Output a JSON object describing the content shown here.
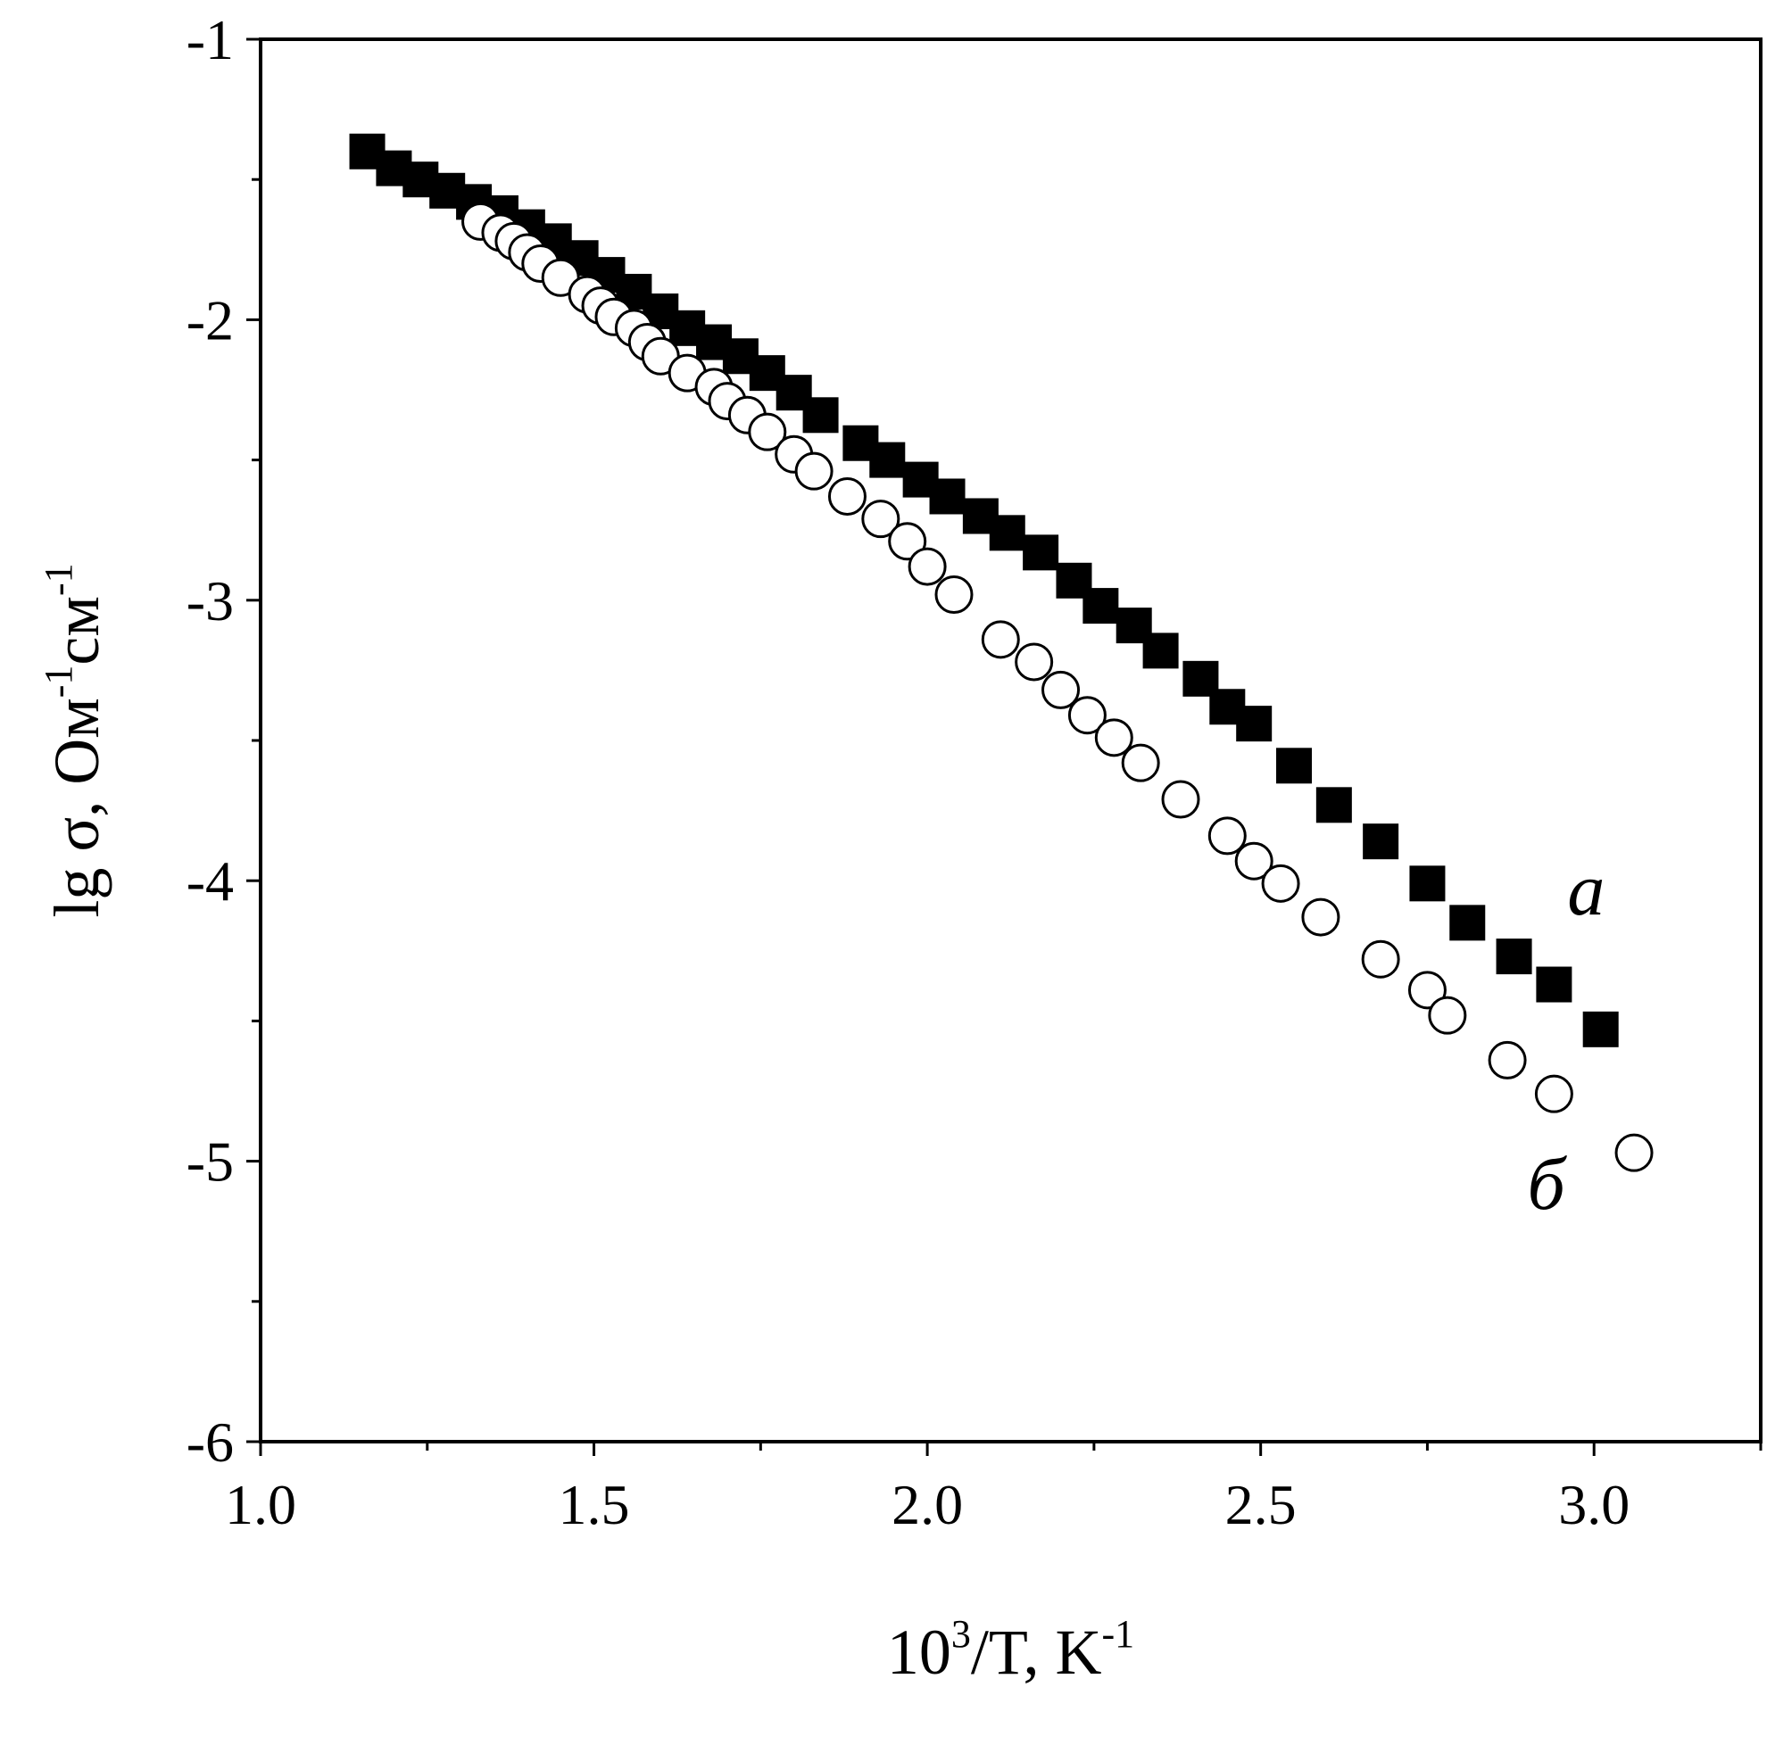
{
  "chart_data": {
    "type": "scatter",
    "xlim": [
      1.0,
      3.25
    ],
    "ylim": [
      -6,
      -1
    ],
    "x_ticks": [
      "1.0",
      "1.5",
      "2.0",
      "2.5",
      "3.0"
    ],
    "y_ticks": [
      "-1",
      "-2",
      "-3",
      "-4",
      "-5",
      "-6"
    ],
    "xlabel": {
      "base": "10",
      "sup1": "3",
      "mid": "/T, K",
      "sup2": "-1"
    },
    "ylabel": {
      "base": "lg σ, Ом",
      "sup1": "-1",
      "mid": "см",
      "sup2": "-1"
    },
    "grid": false,
    "series": [
      {
        "name": "a",
        "marker": "filled-square",
        "x": [
          1.16,
          1.2,
          1.24,
          1.28,
          1.32,
          1.36,
          1.4,
          1.44,
          1.48,
          1.52,
          1.56,
          1.6,
          1.64,
          1.68,
          1.72,
          1.76,
          1.8,
          1.84,
          1.9,
          1.94,
          1.99,
          2.03,
          2.08,
          2.12,
          2.17,
          2.22,
          2.26,
          2.31,
          2.35,
          2.41,
          2.45,
          2.49,
          2.55,
          2.61,
          2.68,
          2.75,
          2.81,
          2.88,
          2.94,
          3.01
        ],
        "y": [
          -1.4,
          -1.46,
          -1.5,
          -1.54,
          -1.58,
          -1.62,
          -1.67,
          -1.72,
          -1.78,
          -1.84,
          -1.9,
          -1.97,
          -2.03,
          -2.08,
          -2.13,
          -2.19,
          -2.26,
          -2.34,
          -2.44,
          -2.5,
          -2.57,
          -2.63,
          -2.7,
          -2.76,
          -2.83,
          -2.93,
          -3.02,
          -3.09,
          -3.18,
          -3.28,
          -3.38,
          -3.44,
          -3.59,
          -3.73,
          -3.86,
          -4.01,
          -4.15,
          -4.27,
          -4.37,
          -4.53
        ]
      },
      {
        "name": "б",
        "marker": "open-circle",
        "x": [
          1.33,
          1.36,
          1.38,
          1.4,
          1.42,
          1.45,
          1.49,
          1.51,
          1.53,
          1.56,
          1.58,
          1.6,
          1.64,
          1.68,
          1.7,
          1.73,
          1.76,
          1.8,
          1.83,
          1.88,
          1.93,
          1.97,
          2.0,
          2.04,
          2.11,
          2.16,
          2.2,
          2.24,
          2.28,
          2.32,
          2.38,
          2.45,
          2.49,
          2.53,
          2.59,
          2.68,
          2.75,
          2.78,
          2.87,
          2.94,
          3.06
        ],
        "y": [
          -1.65,
          -1.69,
          -1.72,
          -1.76,
          -1.8,
          -1.85,
          -1.91,
          -1.95,
          -1.99,
          -2.03,
          -2.08,
          -2.13,
          -2.19,
          -2.24,
          -2.29,
          -2.34,
          -2.4,
          -2.48,
          -2.54,
          -2.63,
          -2.71,
          -2.79,
          -2.88,
          -2.98,
          -3.14,
          -3.22,
          -3.32,
          -3.41,
          -3.49,
          -3.58,
          -3.71,
          -3.84,
          -3.93,
          -4.01,
          -4.13,
          -4.28,
          -4.39,
          -4.48,
          -4.64,
          -4.76,
          -4.97
        ]
      }
    ],
    "annotations": [
      {
        "text": "a",
        "x": 2.96,
        "y": -4.12
      },
      {
        "text": "б",
        "x": 2.9,
        "y": -5.17
      }
    ]
  }
}
